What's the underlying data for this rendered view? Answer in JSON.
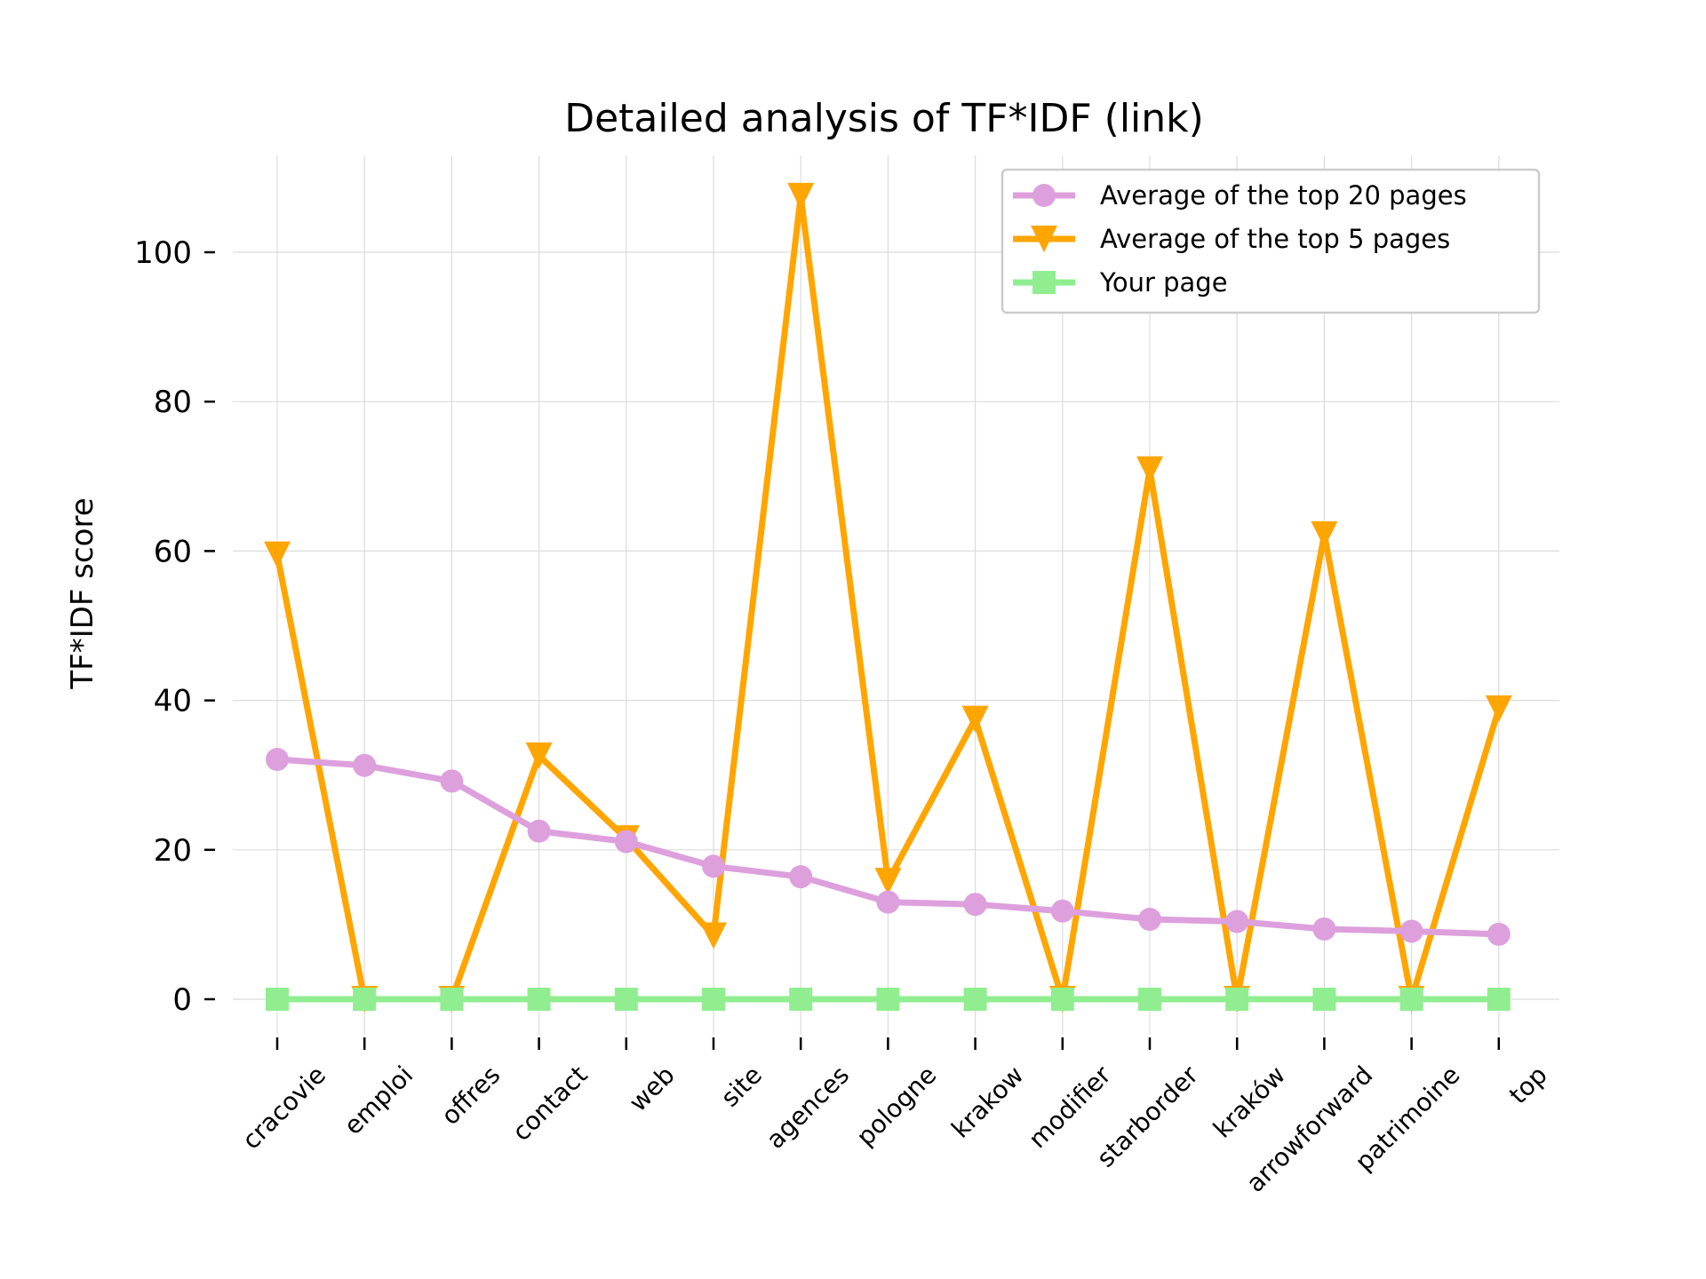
{
  "chart_data": {
    "type": "line",
    "title": "Detailed analysis of TF*IDF (link)",
    "xlabel": "",
    "ylabel": "TF*IDF score",
    "categories": [
      "cracovie",
      "emploi",
      "offres",
      "contact",
      "web",
      "site",
      "agences",
      "pologne",
      "krakow",
      "modifier",
      "starborder",
      "kraków",
      "arrowforward",
      "patrimoine",
      "top"
    ],
    "yticks": [
      0,
      20,
      40,
      60,
      80,
      100
    ],
    "ylim": [
      -4,
      113
    ],
    "grid": true,
    "legend_position": "top-right",
    "series": [
      {
        "name": "Average of the top 20 pages",
        "color": "#dda0dd",
        "marker": "circle",
        "values": [
          32.1,
          31.3,
          29.2,
          22.5,
          21.1,
          17.8,
          16.4,
          13.0,
          12.7,
          11.8,
          10.7,
          10.4,
          9.4,
          9.1,
          8.7
        ]
      },
      {
        "name": "Average of the top 5 pages",
        "color": "#ffa500",
        "marker": "triangle-down",
        "values": [
          59.5,
          0,
          0,
          32.6,
          21.5,
          8.5,
          107.5,
          15.8,
          37.5,
          0,
          70.9,
          0,
          62.2,
          0,
          38.9
        ]
      },
      {
        "name": "Your page",
        "color": "#90ee90",
        "marker": "square",
        "values": [
          0,
          0,
          0,
          0,
          0,
          0,
          0,
          0,
          0,
          0,
          0,
          0,
          0,
          0,
          0
        ]
      }
    ]
  }
}
